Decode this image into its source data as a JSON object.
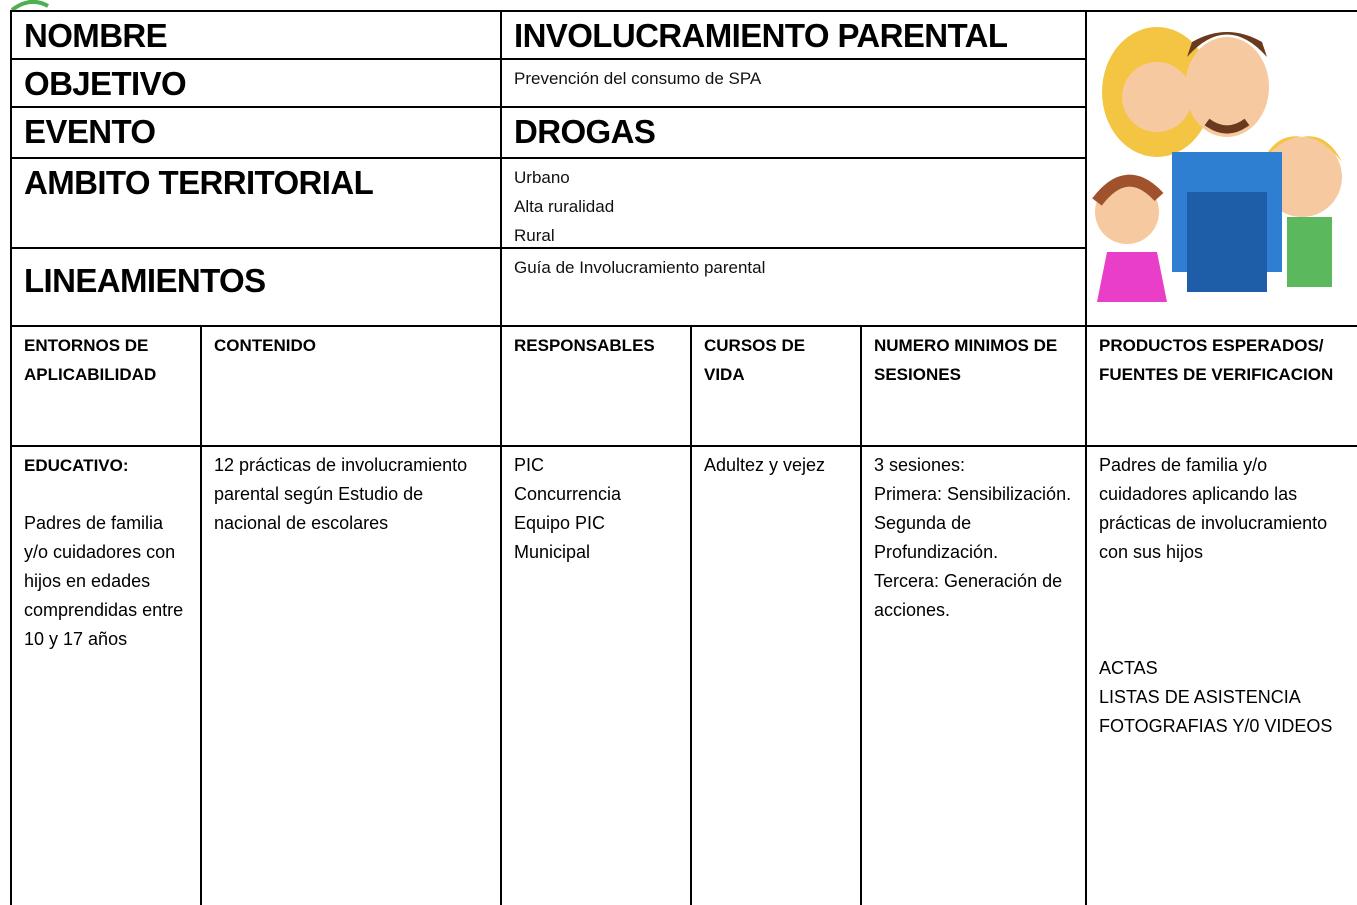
{
  "header_rows": [
    {
      "label": "NOMBRE",
      "value": "INVOLUCRAMIENTO PARENTAL"
    },
    {
      "label": "OBJETIVO",
      "value": "Prevención del consumo de SPA"
    },
    {
      "label": "EVENTO",
      "value": "DROGAS"
    },
    {
      "label": "AMBITO TERRITORIAL",
      "value_lines": [
        "Urbano",
        "Alta ruralidad",
        "Rural"
      ]
    },
    {
      "label": "LINEAMIENTOS",
      "value": "Guía de Involucramiento parental"
    }
  ],
  "table": {
    "headers": [
      "ENTORNOS DE APLICABILIDAD",
      "CONTENIDO",
      "RESPONSABLES",
      "CURSOS DE VIDA",
      "NUMERO MINIMOS DE SESIONES",
      "PRODUCTOS ESPERADOS/ FUENTES DE VERIFICACION"
    ],
    "cells": [
      {
        "blocks": [
          [
            "EDUCATIVO:"
          ],
          [
            "Padres de familia y/o cuidadores con hijos en edades comprendidas entre 10 y 17 años"
          ]
        ]
      },
      {
        "blocks": [
          [
            "12 prácticas de involucramiento parental según Estudio de  nacional de escolares"
          ]
        ]
      },
      {
        "blocks": [
          [
            "PIC",
            "Concurrencia",
            "Equipo PIC Municipal"
          ]
        ]
      },
      {
        "blocks": [
          [
            "Adultez y vejez"
          ]
        ]
      },
      {
        "blocks": [
          [
            "3 sesiones:",
            "Primera: Sensibilización.",
            "Segunda de Profundización.",
            "Tercera: Generación de acciones."
          ]
        ]
      },
      {
        "blocks": [
          [
            "Padres de familia y/o cuidadores  aplicando las prácticas de involucramiento  con sus hijos"
          ],
          [
            "ACTAS",
            "LISTAS DE ASISTENCIA",
            "FOTOGRAFIAS Y/0 VIDEOS"
          ]
        ]
      }
    ]
  }
}
